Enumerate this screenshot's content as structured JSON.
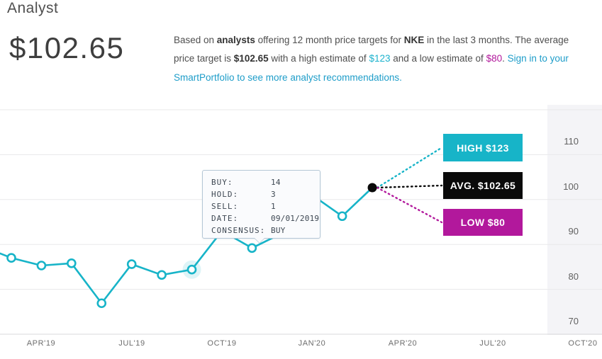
{
  "header": {
    "title": "Analyst",
    "average_price": "$102.65"
  },
  "description": {
    "part1": "Based on ",
    "bold1": "analysts",
    "part2": " offering 12 month price targets for ",
    "bold2": "NKE",
    "part3": " in the last 3 months. The average price target is ",
    "bold3": "$102.65",
    "part4": " with a high estimate of ",
    "high_value": "$123",
    "part5": " and a low estimate of ",
    "low_value": "$80",
    "part6": ". ",
    "link": "Sign in to your SmartPortfolio to see more analyst recommendations."
  },
  "tooltip": {
    "rows": [
      {
        "label": "BUY:",
        "value": "14"
      },
      {
        "label": "HOLD:",
        "value": "3"
      },
      {
        "label": "SELL:",
        "value": "1"
      },
      {
        "label": "DATE:",
        "value": "09/01/2019"
      },
      {
        "label": "CONSENSUS:",
        "value": "BUY"
      }
    ]
  },
  "flags": {
    "high": "HIGH $123",
    "avg": "AVG. $102.65",
    "low": "LOW $80"
  },
  "colors": {
    "teal": "#17b4c8",
    "magenta": "#b2189c",
    "black": "#0a0a0a",
    "link": "#1e9dc9",
    "grid": "#e8e8ea",
    "axis": "#d8d8db",
    "band": "#f4f4f7"
  },
  "chart_data": {
    "type": "line",
    "symbol": "NKE",
    "ylim": [
      70,
      121
    ],
    "grid": "horizontal",
    "legend": "none",
    "y_gridline_values": [
      120,
      110,
      100,
      90,
      80,
      70
    ],
    "y_tick_labels": [
      "110",
      "100",
      "90",
      "80",
      "70"
    ],
    "x_tick_labels": [
      "APR'19",
      "JUL'19",
      "OCT'19",
      "JAN'20",
      "APR'20",
      "JUL'20",
      "OCT'20"
    ],
    "left_edge_value": 88.5,
    "points": [
      {
        "month": "MAR'19",
        "value": 87.0
      },
      {
        "month": "APR'19",
        "value": 85.3
      },
      {
        "month": "MAY'19",
        "value": 85.8
      },
      {
        "month": "JUN'19",
        "value": 76.9
      },
      {
        "month": "JUL'19",
        "value": 85.6
      },
      {
        "month": "AUG'19",
        "value": 83.2
      },
      {
        "month": "SEP'19",
        "value": 84.4
      },
      {
        "month": "OCT'19",
        "value": 93.0
      },
      {
        "month": "NOV'19",
        "value": 89.2
      },
      {
        "month": "DEC'19",
        "value": 92.5
      },
      {
        "month": "JAN'20",
        "value": 101.0
      },
      {
        "month": "FEB'20",
        "value": 96.3
      },
      {
        "month": "MAR'20",
        "value": 102.65
      }
    ],
    "highlighted_point": {
      "month": "SEP'19",
      "value": 84.4,
      "date": "09/01/2019",
      "consensus": "BUY"
    },
    "end_point": {
      "value": 102.65,
      "label": "AVG. $102.65"
    },
    "high_estimate": 123,
    "average_target": 102.65,
    "low_estimate": 80
  }
}
